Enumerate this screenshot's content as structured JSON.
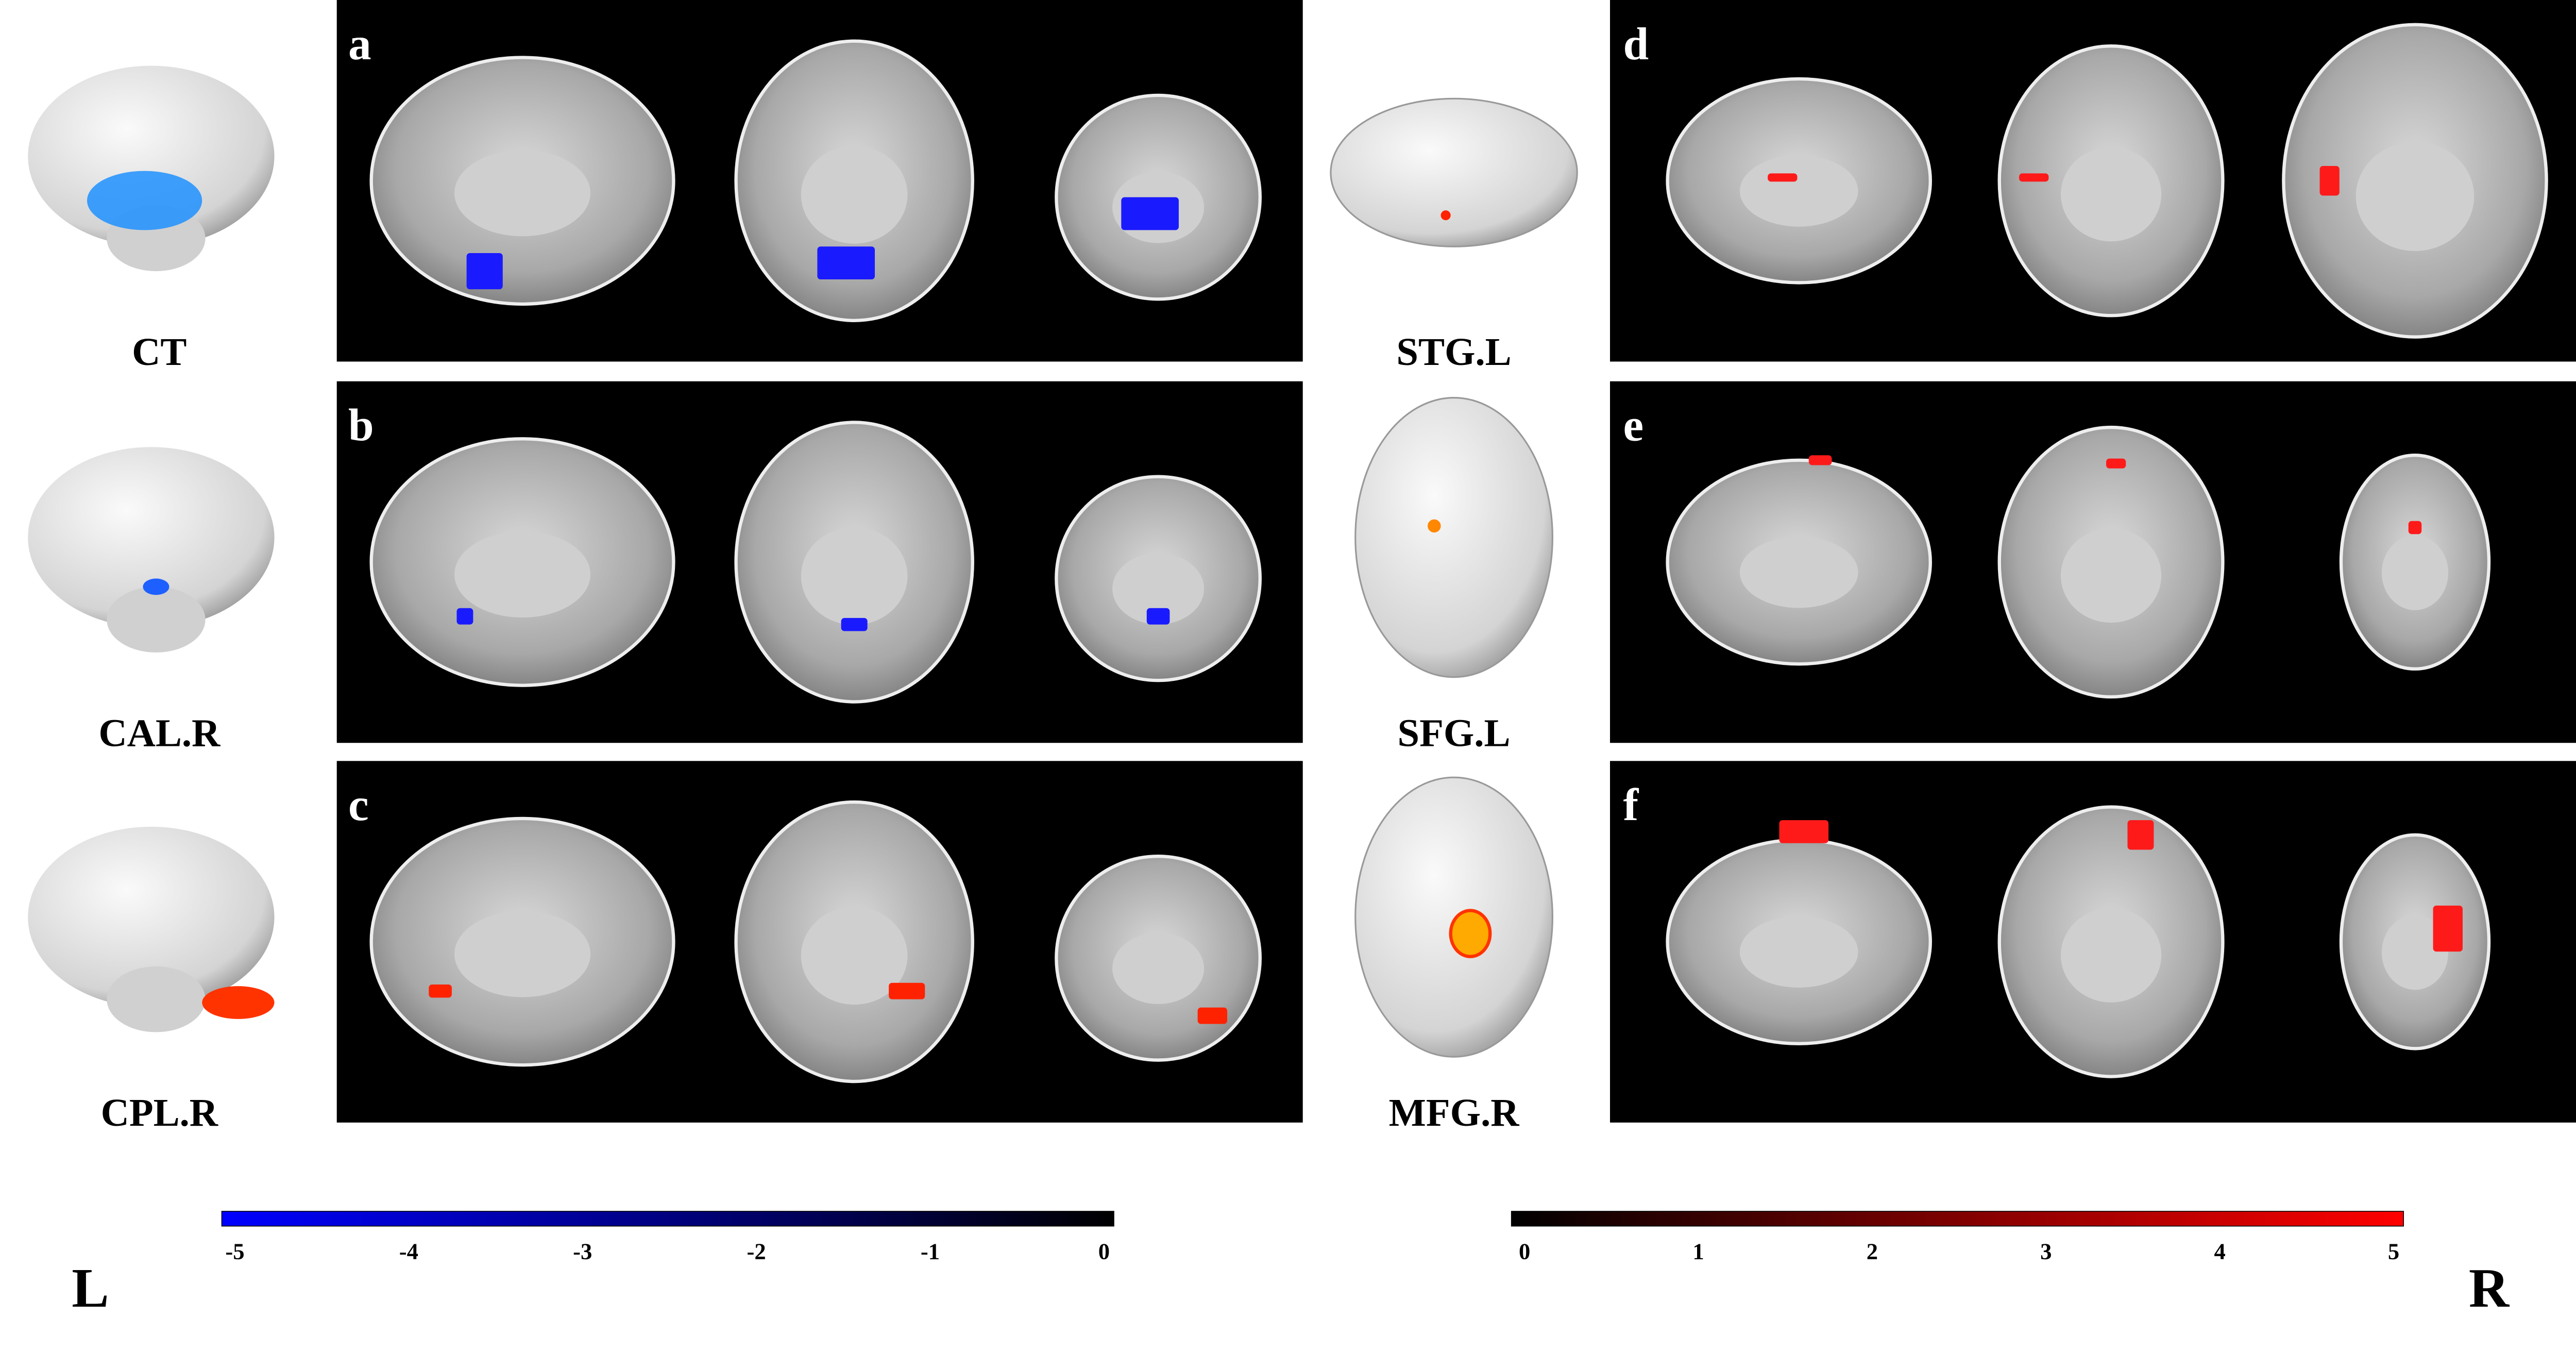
{
  "rows": [
    {
      "left_label": "CT",
      "left_panel": "a",
      "middle_label": "STG.L",
      "right_panel": "d"
    },
    {
      "left_label": "CAL.R",
      "left_panel": "b",
      "middle_label": "SFG.L",
      "right_panel": "e"
    },
    {
      "left_label": "CPL.R",
      "left_panel": "c",
      "middle_label": "MFG.R",
      "right_panel": "f"
    }
  ],
  "colorbars": [
    {
      "range": [
        -5,
        0
      ],
      "ticks": [
        -5,
        -4,
        -3,
        -2,
        -1,
        0
      ]
    },
    {
      "range": [
        0,
        5
      ],
      "ticks": [
        0,
        1,
        2,
        3,
        4,
        5
      ]
    }
  ],
  "sides": {
    "left": "L",
    "right": "R"
  }
}
